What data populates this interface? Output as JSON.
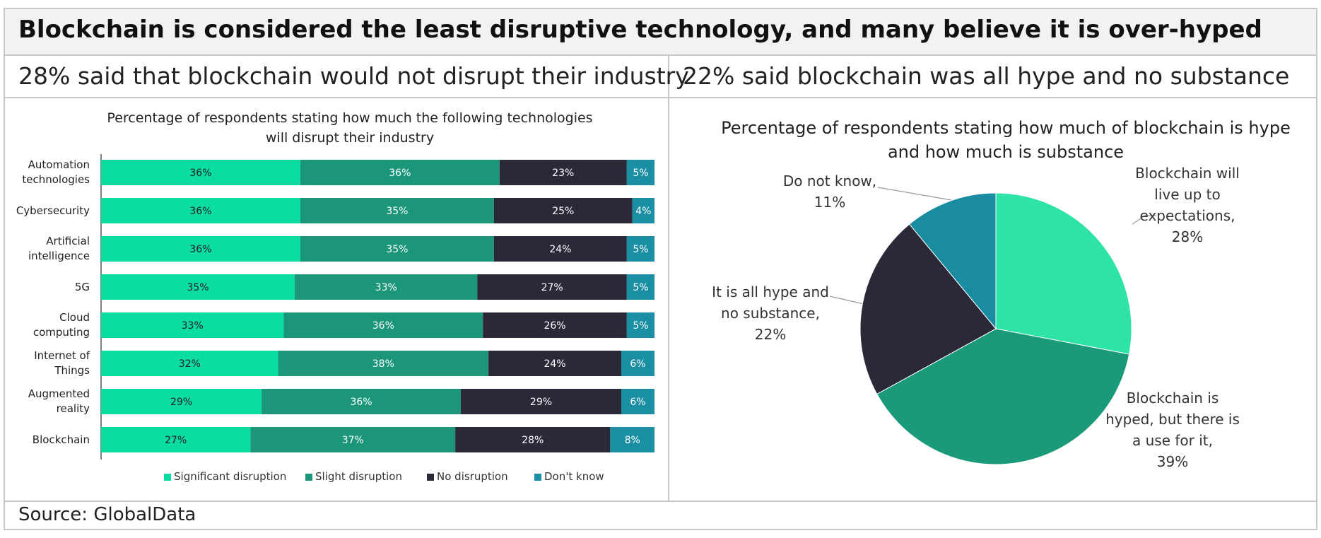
{
  "title": "Blockchain is considered the least disruptive technology, and many believe it is over-hyped",
  "subtitles": [
    "28% said that blockchain would not disrupt their industry",
    "22% said blockchain was all hype and no substance"
  ],
  "source": "Source: GlobalData",
  "chart_data": [
    {
      "type": "stacked-bar",
      "title": "Percentage of respondents stating how much the following technologies will disrupt their industry",
      "categories": [
        "Automation technologies",
        "Cybersecurity",
        "Artificial intelligence",
        "5G",
        "Cloud computing",
        "Internet of Things",
        "Augmented reality",
        "Blockchain"
      ],
      "xlim": [
        0,
        100
      ],
      "legend": "bottom",
      "series": [
        {
          "name": "Significant disruption",
          "color": "#0bdc9f",
          "values": [
            36,
            36,
            36,
            35,
            33,
            32,
            29,
            27
          ],
          "value_labels": [
            "36%",
            "36%",
            "36%",
            "35%",
            "33%",
            "32%",
            "29%",
            "27%"
          ]
        },
        {
          "name": "Slight disruption",
          "color": "#1b9678",
          "values": [
            36,
            35,
            35,
            33,
            36,
            38,
            36,
            37
          ],
          "value_labels": [
            "36%",
            "35%",
            "35%",
            "33%",
            "36%",
            "38%",
            "36%",
            "37%"
          ]
        },
        {
          "name": "No disruption",
          "color": "#2b2838",
          "values": [
            23,
            25,
            24,
            27,
            26,
            24,
            29,
            28
          ],
          "value_labels": [
            "23%",
            "25%",
            "24%",
            "27%",
            "26%",
            "24%",
            "29%",
            "28%"
          ]
        },
        {
          "name": "Don't know",
          "color": "#1a8fa3",
          "values": [
            5,
            4,
            5,
            5,
            5,
            6,
            6,
            8
          ],
          "value_labels": [
            "5%",
            "4%",
            "5%",
            "5%",
            "5%",
            "6%",
            "6%",
            "8%"
          ]
        }
      ]
    },
    {
      "type": "pie",
      "title": "Percentage of respondents stating how much of blockchain is hype and how much is substance",
      "categories": [
        "Blockchain will live up to expectations,",
        "Blockchain is hyped, but there is a use for it,",
        "It is all hype and no substance,",
        "Do not know,"
      ],
      "values": [
        28,
        39,
        22,
        11
      ],
      "value_labels": [
        "28%",
        "39%",
        "22%",
        "11%"
      ],
      "colors": [
        "#2ee3a6",
        "#1b9a79",
        "#2b2838",
        "#1a8ca1"
      ]
    }
  ]
}
